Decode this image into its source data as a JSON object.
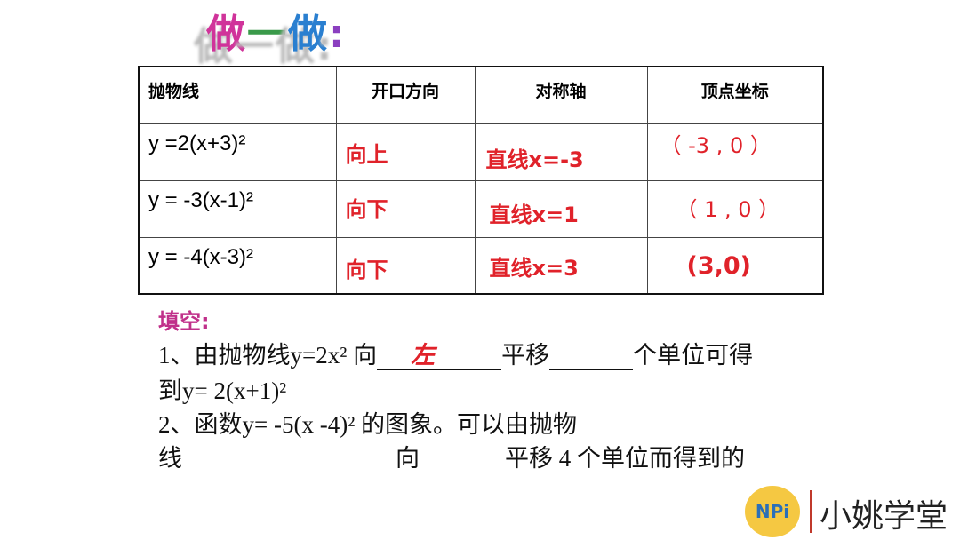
{
  "title": {
    "chars": [
      "做",
      "一",
      "做",
      ":"
    ],
    "colors": [
      "#d0339a",
      "#3a9a4a",
      "#2a7fd0",
      "#8b3fc0"
    ]
  },
  "table": {
    "headers": [
      "抛物线",
      "开口方向",
      "对称轴",
      "顶点坐标"
    ],
    "rows": [
      {
        "parabola": "y =2(x+3)²",
        "direction": "向上",
        "axis": "直线x=-3",
        "vertex": "（ -3 , 0 ）"
      },
      {
        "parabola": "y = -3(x-1)²",
        "direction": "向下",
        "axis": "直线x=1",
        "vertex": "（ 1 , 0 ）"
      },
      {
        "parabola": "y = -4(x-3)²",
        "direction": "向下",
        "axis": "直线x=3",
        "vertex": "(3,0)"
      }
    ]
  },
  "fill": {
    "heading": "填空:",
    "q1_a": "1、由抛物线y=2x² 向",
    "q1_answer": "左",
    "q1_b": "平移",
    "q1_c": "个单位可得",
    "q1_line2": "到y= 2(x+1)²",
    "q2_line1": "2、函数y= -5(x -4)² 的图象。可以由抛物",
    "q2_a": "线",
    "q2_b": "向",
    "q2_c": "平移 4 个单位而得到的"
  },
  "brand": {
    "name": "小姚学堂",
    "logo_text": "NPi"
  },
  "colors": {
    "answer": "#e0222a",
    "heading": "#c0308a"
  }
}
